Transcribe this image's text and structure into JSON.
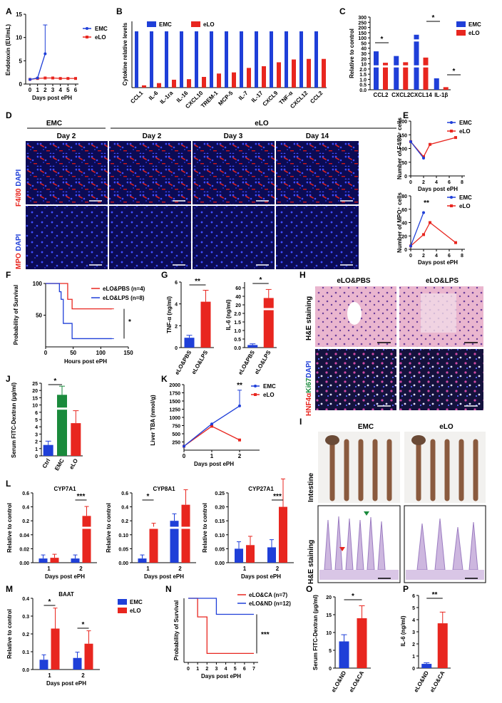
{
  "colors": {
    "blue": "#1f3fd8",
    "red": "#e8261f",
    "green": "#1a8a3c",
    "he_pink": "#e9a8c8",
    "fluor_bg": "#0b0b55"
  },
  "legend_emc_elo": {
    "emc": "EMC",
    "elo": "eLO"
  },
  "panel_labels": [
    "A",
    "B",
    "C",
    "D",
    "E",
    "F",
    "G",
    "H",
    "I",
    "J",
    "K",
    "L",
    "M",
    "N",
    "O",
    "P"
  ],
  "D": {
    "group_emc": "EMC",
    "group_elo": "eLO",
    "days": [
      "Day 2",
      "Day 2",
      "Day 3",
      "Day 14"
    ],
    "row1_a": "F4/80",
    "row1_b": " DAPI",
    "row2_a": "MPO",
    "row2_b": " DAPI"
  },
  "H": {
    "groups": [
      "eLO&PBS",
      "eLO&LPS"
    ],
    "row1": "H&E staining",
    "row2_a": "HNF4α",
    "row2_b": "Ki67",
    "row2_c": "DAPI"
  },
  "I": {
    "groups": [
      "EMC",
      "eLO"
    ],
    "row1": "Intestine",
    "row2": "H&E staining"
  },
  "sig": {
    "one": "*",
    "two": "**",
    "three": "***"
  },
  "chart_data": [
    {
      "id": "A",
      "type": "line",
      "ylabel": "Endotoxin (EU/mL)",
      "xlabel": "Days post ePH",
      "x": [
        0,
        1,
        2,
        3,
        4,
        5,
        6
      ],
      "xticks": [
        "0",
        "1",
        "2",
        "3",
        "4",
        "5",
        "6"
      ],
      "ylim": [
        0,
        15
      ],
      "yticks": [
        "0",
        "5",
        "10",
        "15"
      ],
      "series": [
        {
          "name": "EMC",
          "values": [
            1,
            1.3,
            6.5,
            null,
            null,
            null,
            null
          ],
          "err": [
            0,
            0,
            6
          ]
        },
        {
          "name": "eLO",
          "values": [
            1,
            1.2,
            1.3,
            1.3,
            1.2,
            1.2,
            1.2
          ]
        }
      ]
    },
    {
      "id": "B",
      "type": "bar",
      "ylabel": "Cytokine relative levels",
      "categories": [
        "CCL1",
        "IL-6",
        "IL-1ra",
        "IL-16",
        "CXCL10",
        "TREM-1",
        "MCP-5",
        "IL-7",
        "IL-17",
        "CXCL9",
        "TNF-α",
        "CXCL12",
        "CCL2"
      ],
      "series": [
        {
          "name": "EMC",
          "values": [
            1,
            1,
            1,
            1,
            1,
            1,
            1,
            1,
            1,
            1,
            1,
            1,
            1
          ]
        },
        {
          "name": "eLO",
          "values": [
            0.04,
            0.08,
            0.14,
            0.15,
            0.19,
            0.25,
            0.27,
            0.35,
            0.38,
            0.45,
            0.5,
            0.51,
            0.51
          ]
        }
      ]
    },
    {
      "id": "C",
      "type": "bar",
      "ylabel": "Relative to control",
      "categories": [
        "CCL2",
        "CXCL2",
        "CXCL14",
        "IL-1β"
      ],
      "yticks": [
        "0.0",
        "0.5",
        "1.0",
        "1.5",
        "2.0",
        "10",
        "20",
        "30",
        "40",
        "50",
        "100",
        "150",
        "200",
        "250",
        "300"
      ],
      "series": [
        {
          "name": "EMC",
          "values": [
            34,
            25,
            130,
            1.1
          ]
        },
        {
          "name": "eLO",
          "values": [
            12,
            13,
            22,
            0.25
          ]
        }
      ]
    },
    {
      "id": "E1",
      "type": "line",
      "ylabel": "Number of F4/80⁺ cells",
      "xlabel": "Days post ePH",
      "x": [
        0,
        2,
        3,
        7
      ],
      "xticks": [
        "0",
        "2",
        "4",
        "6",
        "8"
      ],
      "ylim": [
        0,
        200
      ],
      "yticks": [
        "0",
        "50",
        "100",
        "150",
        "200"
      ],
      "series": [
        {
          "name": "EMC",
          "values": [
            125,
            65,
            null,
            null
          ]
        },
        {
          "name": "eLO",
          "values": [
            125,
            70,
            115,
            140
          ]
        }
      ]
    },
    {
      "id": "E2",
      "type": "line",
      "ylabel": "Number of MPO⁺ cells",
      "xlabel": "Days post ePH",
      "x": [
        0,
        2,
        3,
        7
      ],
      "xticks": [
        "0",
        "2",
        "4",
        "6",
        "8"
      ],
      "ylim": [
        0,
        80
      ],
      "yticks": [
        "0",
        "20",
        "40",
        "60",
        "80"
      ],
      "series": [
        {
          "name": "EMC",
          "values": [
            5,
            55,
            null,
            null
          ]
        },
        {
          "name": "eLO",
          "values": [
            5,
            22,
            40,
            10
          ]
        }
      ]
    },
    {
      "id": "F",
      "type": "line",
      "ylabel": "Probability of Survival",
      "xlabel": "Hours post ePH",
      "xticks": [
        "0",
        "50",
        "100",
        "150"
      ],
      "yticks": [
        "50",
        "100"
      ],
      "series": [
        {
          "name": "eLO&PBS (n=4)",
          "x": [
            0,
            40,
            40,
            48,
            48,
            120
          ],
          "values": [
            100,
            100,
            75,
            75,
            60,
            60
          ]
        },
        {
          "name": "eLO&LPS (n=8)",
          "x": [
            0,
            25,
            25,
            28,
            28,
            32,
            32,
            48,
            48,
            120
          ],
          "values": [
            100,
            100,
            87,
            87,
            75,
            75,
            37,
            37,
            13,
            13
          ]
        }
      ]
    },
    {
      "id": "G1",
      "type": "bar",
      "ylabel": "TNF-α (ng/ml)",
      "categories": [
        "eLO&PBS",
        "eLO&LPS"
      ],
      "ylim": [
        0,
        6
      ],
      "yticks": [
        "0",
        "2",
        "4",
        "6"
      ],
      "values": [
        0.9,
        4.2
      ]
    },
    {
      "id": "G2",
      "type": "bar",
      "ylabel": "IL-6 (ng/ml)",
      "categories": [
        "eLO&PBS",
        "eLO&LPS"
      ],
      "yticks": [
        "0.0",
        "0.5",
        "1.0",
        "1.5",
        "2.0",
        "20",
        "40",
        "60"
      ],
      "values": [
        0.15,
        36
      ]
    },
    {
      "id": "J",
      "type": "bar",
      "ylabel": "Serum FITC-Dextran (µg/ml)",
      "categories": [
        "Ctrl",
        "EMC",
        "eLO"
      ],
      "yticks": [
        "0",
        "1",
        "2",
        "3",
        "4",
        "5",
        "6",
        "10",
        "15",
        "20",
        "25"
      ],
      "values": [
        1.5,
        17,
        4.5
      ]
    },
    {
      "id": "K",
      "type": "line",
      "ylabel": "Liver TBA (nmol/g)",
      "xlabel": "Days post ePH",
      "x": [
        0,
        1,
        2
      ],
      "xticks": [
        "0",
        "1",
        "2"
      ],
      "ylim": [
        0,
        2000
      ],
      "yticks": [
        "250",
        "500",
        "750",
        "1000",
        "1250",
        "1500",
        "1750",
        "2000"
      ],
      "series": [
        {
          "name": "EMC",
          "values": [
            120,
            800,
            1350
          ]
        },
        {
          "name": "eLO",
          "values": [
            120,
            730,
            310
          ]
        }
      ]
    },
    {
      "id": "L1",
      "type": "bar",
      "title": "CYP7A1",
      "ylabel": "Relative to control",
      "xlabel": "Days post ePH",
      "categories": [
        "1",
        "2"
      ],
      "yticks": [
        "0.00",
        "0.02",
        "0.04",
        "0.2",
        "0.4",
        "0.6"
      ],
      "series": [
        {
          "name": "EMC",
          "values": [
            0.006,
            0.006
          ]
        },
        {
          "name": "eLO",
          "values": [
            0.007,
            0.27
          ]
        }
      ]
    },
    {
      "id": "L2",
      "type": "bar",
      "title": "CYP8A1",
      "ylabel": "Relative to control",
      "xlabel": "Days post ePH",
      "categories": [
        "1",
        "2"
      ],
      "yticks": [
        "0.00",
        "0.05",
        "0.10",
        "0.2",
        "0.4",
        "0.6"
      ],
      "series": [
        {
          "name": "EMC",
          "values": [
            0.015,
            0.2
          ]
        },
        {
          "name": "eLO",
          "values": [
            0.11,
            0.43
          ]
        }
      ]
    },
    {
      "id": "L3",
      "type": "bar",
      "title": "CYP27A1",
      "ylabel": "Relative to control",
      "xlabel": "Days post ePH",
      "categories": [
        "1",
        "2"
      ],
      "ylim": [
        0,
        0.25
      ],
      "yticks": [
        "0.00",
        "0.05",
        "0.10",
        "0.15",
        "0.20",
        "0.25"
      ],
      "series": [
        {
          "name": "EMC",
          "values": [
            0.05,
            0.055
          ]
        },
        {
          "name": "eLO",
          "values": [
            0.063,
            0.2
          ]
        }
      ]
    },
    {
      "id": "M",
      "type": "bar",
      "title": "BAAT",
      "ylabel": "Relative to control",
      "xlabel": "Days post ePH",
      "categories": [
        "1",
        "2"
      ],
      "ylim": [
        0,
        0.4
      ],
      "yticks": [
        "0.0",
        "0.1",
        "0.2",
        "0.3",
        "0.4"
      ],
      "series": [
        {
          "name": "EMC",
          "values": [
            0.055,
            0.065
          ]
        },
        {
          "name": "eLO",
          "values": [
            0.23,
            0.145
          ]
        }
      ]
    },
    {
      "id": "N",
      "type": "line",
      "ylabel": "Probability of Survival",
      "xlabel": "Days post ePH",
      "xticks": [
        "0",
        "1",
        "2",
        "3",
        "4",
        "5",
        "6",
        "7"
      ],
      "series": [
        {
          "name": "eLO&CA (n=7)",
          "x": [
            0,
            1,
            1,
            2,
            2,
            7
          ],
          "values": [
            100,
            100,
            71,
            71,
            14,
            14
          ]
        },
        {
          "name": "eLO&ND (n=12)",
          "x": [
            0,
            3,
            3,
            7
          ],
          "values": [
            100,
            100,
            75,
            75
          ]
        }
      ]
    },
    {
      "id": "O",
      "type": "bar",
      "ylabel": "Serum FITC-Dextran (µg/ml)",
      "categories": [
        "eLO&ND",
        "eLO&CA"
      ],
      "ylim": [
        0,
        20
      ],
      "yticks": [
        "0",
        "5",
        "10",
        "15",
        "20"
      ],
      "values": [
        7.5,
        14
      ]
    },
    {
      "id": "P",
      "type": "bar",
      "ylabel": "IL-6 (ng/ml)",
      "categories": [
        "eLO&ND",
        "eLO&CA"
      ],
      "ylim": [
        0,
        6
      ],
      "yticks": [
        "0",
        "1",
        "2",
        "3",
        "4",
        "5",
        "6"
      ],
      "values": [
        0.35,
        3.7
      ]
    }
  ]
}
